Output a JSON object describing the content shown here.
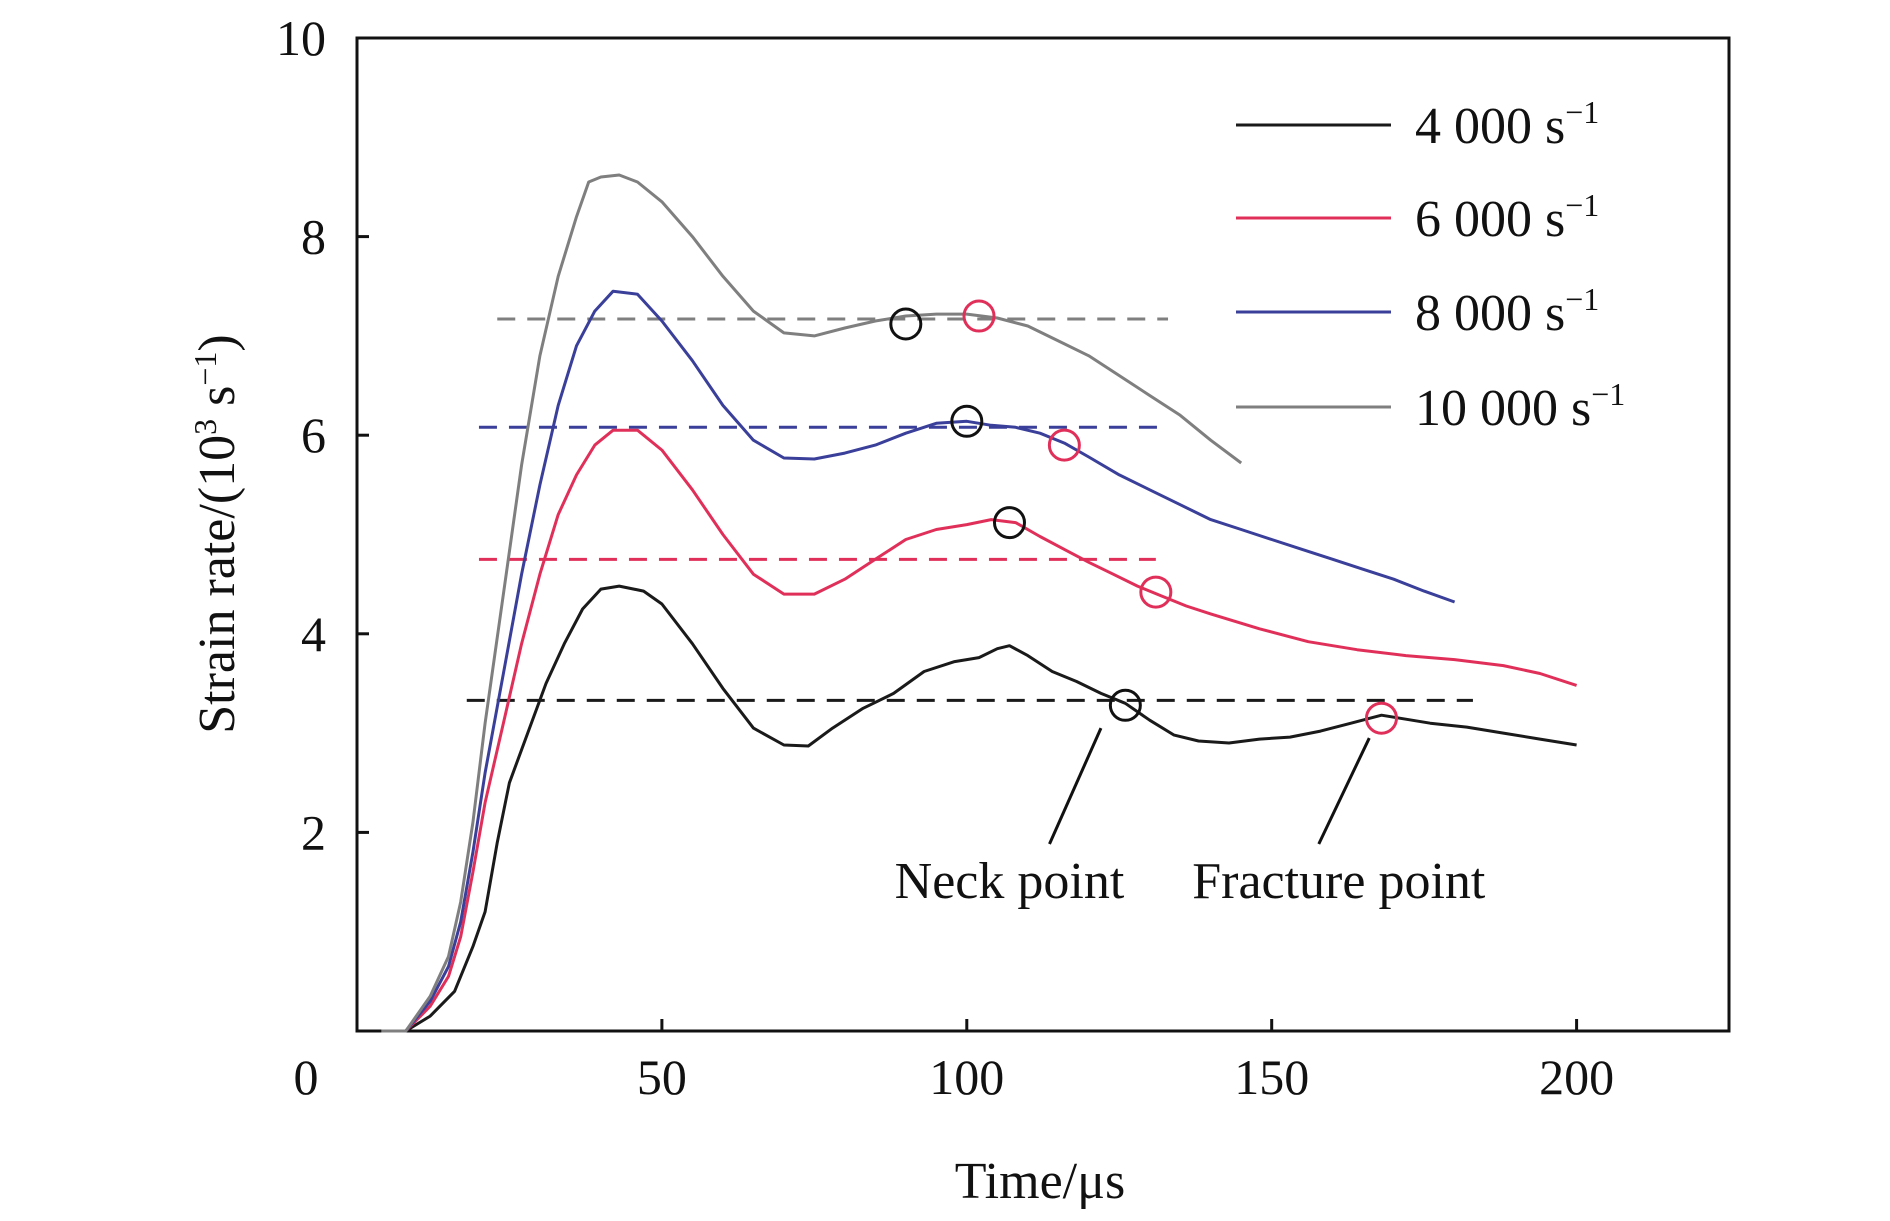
{
  "chart_data": {
    "type": "line",
    "xlabel": "Time/μs",
    "ylabel_base": "Strain rate/(10",
    "ylabel_sup1": "3",
    "ylabel_mid": " s",
    "ylabel_sup2": "−1",
    "ylabel_end": ")",
    "xlim": [
      0,
      225
    ],
    "ylim": [
      0,
      10
    ],
    "x_ticks": [
      {
        "value": 0,
        "label": "0"
      },
      {
        "value": 50,
        "label": "50"
      },
      {
        "value": 100,
        "label": "100"
      },
      {
        "value": 150,
        "label": "150"
      },
      {
        "value": 200,
        "label": "200"
      }
    ],
    "y_ticks": [
      {
        "value": 2,
        "label": "2"
      },
      {
        "value": 4,
        "label": "4"
      },
      {
        "value": 6,
        "label": "6"
      },
      {
        "value": 8,
        "label": "8"
      },
      {
        "value": 10,
        "label": "10"
      }
    ],
    "legend_position": "top-right",
    "series": [
      {
        "name": "4 000 s",
        "name_sup": "−1",
        "color": "#1a1a1a",
        "points": [
          [
            4,
            0
          ],
          [
            8,
            0
          ],
          [
            12,
            0.15
          ],
          [
            16,
            0.4
          ],
          [
            19,
            0.85
          ],
          [
            21,
            1.2
          ],
          [
            23,
            1.9
          ],
          [
            25,
            2.5
          ],
          [
            28,
            3.0
          ],
          [
            31,
            3.5
          ],
          [
            34,
            3.9
          ],
          [
            37,
            4.25
          ],
          [
            40,
            4.45
          ],
          [
            43,
            4.48
          ],
          [
            47,
            4.43
          ],
          [
            50,
            4.3
          ],
          [
            55,
            3.9
          ],
          [
            60,
            3.45
          ],
          [
            65,
            3.05
          ],
          [
            70,
            2.88
          ],
          [
            74,
            2.87
          ],
          [
            78,
            3.05
          ],
          [
            83,
            3.25
          ],
          [
            88,
            3.4
          ],
          [
            93,
            3.62
          ],
          [
            98,
            3.72
          ],
          [
            102,
            3.76
          ],
          [
            105,
            3.85
          ],
          [
            107,
            3.88
          ],
          [
            110,
            3.78
          ],
          [
            114,
            3.62
          ],
          [
            118,
            3.52
          ],
          [
            122,
            3.4
          ],
          [
            126,
            3.3
          ],
          [
            130,
            3.13
          ],
          [
            134,
            2.98
          ],
          [
            138,
            2.92
          ],
          [
            143,
            2.9
          ],
          [
            148,
            2.94
          ],
          [
            153,
            2.96
          ],
          [
            158,
            3.02
          ],
          [
            163,
            3.1
          ],
          [
            168,
            3.18
          ],
          [
            172,
            3.14
          ],
          [
            176,
            3.1
          ],
          [
            182,
            3.06
          ],
          [
            188,
            3.0
          ],
          [
            194,
            2.94
          ],
          [
            200,
            2.88
          ]
        ]
      },
      {
        "name": "6 000 s",
        "name_sup": "−1",
        "color": "#e0305a",
        "points": [
          [
            4,
            0
          ],
          [
            8,
            0
          ],
          [
            12,
            0.25
          ],
          [
            15,
            0.55
          ],
          [
            17,
            0.95
          ],
          [
            19,
            1.6
          ],
          [
            21,
            2.3
          ],
          [
            24,
            3.1
          ],
          [
            27,
            3.9
          ],
          [
            30,
            4.6
          ],
          [
            33,
            5.2
          ],
          [
            36,
            5.6
          ],
          [
            39,
            5.9
          ],
          [
            42,
            6.05
          ],
          [
            46,
            6.05
          ],
          [
            50,
            5.85
          ],
          [
            55,
            5.45
          ],
          [
            60,
            5.0
          ],
          [
            65,
            4.6
          ],
          [
            70,
            4.4
          ],
          [
            75,
            4.4
          ],
          [
            80,
            4.55
          ],
          [
            85,
            4.75
          ],
          [
            90,
            4.95
          ],
          [
            95,
            5.05
          ],
          [
            100,
            5.1
          ],
          [
            104,
            5.15
          ],
          [
            108,
            5.12
          ],
          [
            112,
            4.98
          ],
          [
            116,
            4.85
          ],
          [
            120,
            4.72
          ],
          [
            124,
            4.6
          ],
          [
            128,
            4.48
          ],
          [
            132,
            4.38
          ],
          [
            136,
            4.28
          ],
          [
            140,
            4.2
          ],
          [
            148,
            4.05
          ],
          [
            156,
            3.92
          ],
          [
            164,
            3.84
          ],
          [
            172,
            3.78
          ],
          [
            180,
            3.74
          ],
          [
            188,
            3.68
          ],
          [
            194,
            3.6
          ],
          [
            200,
            3.48
          ]
        ]
      },
      {
        "name": "8 000 s",
        "name_sup": "−1",
        "color": "#3a3f9a",
        "points": [
          [
            4,
            0
          ],
          [
            8,
            0
          ],
          [
            12,
            0.3
          ],
          [
            15,
            0.65
          ],
          [
            17,
            1.1
          ],
          [
            19,
            1.8
          ],
          [
            21,
            2.6
          ],
          [
            24,
            3.6
          ],
          [
            27,
            4.6
          ],
          [
            30,
            5.5
          ],
          [
            33,
            6.3
          ],
          [
            36,
            6.9
          ],
          [
            39,
            7.25
          ],
          [
            42,
            7.45
          ],
          [
            46,
            7.42
          ],
          [
            50,
            7.15
          ],
          [
            55,
            6.75
          ],
          [
            60,
            6.3
          ],
          [
            65,
            5.95
          ],
          [
            70,
            5.77
          ],
          [
            75,
            5.76
          ],
          [
            80,
            5.82
          ],
          [
            85,
            5.9
          ],
          [
            90,
            6.02
          ],
          [
            95,
            6.12
          ],
          [
            100,
            6.14
          ],
          [
            104,
            6.1
          ],
          [
            108,
            6.08
          ],
          [
            112,
            6.02
          ],
          [
            116,
            5.92
          ],
          [
            120,
            5.78
          ],
          [
            125,
            5.6
          ],
          [
            130,
            5.45
          ],
          [
            135,
            5.3
          ],
          [
            140,
            5.15
          ],
          [
            145,
            5.05
          ],
          [
            150,
            4.95
          ],
          [
            155,
            4.85
          ],
          [
            160,
            4.75
          ],
          [
            165,
            4.65
          ],
          [
            170,
            4.55
          ],
          [
            175,
            4.43
          ],
          [
            180,
            4.32
          ]
        ]
      },
      {
        "name": "10 000 s",
        "name_sup": "−1",
        "color": "#7f7f7f",
        "points": [
          [
            4,
            0
          ],
          [
            8,
            0
          ],
          [
            12,
            0.35
          ],
          [
            15,
            0.75
          ],
          [
            17,
            1.3
          ],
          [
            19,
            2.1
          ],
          [
            21,
            3.1
          ],
          [
            24,
            4.4
          ],
          [
            27,
            5.7
          ],
          [
            30,
            6.8
          ],
          [
            33,
            7.6
          ],
          [
            36,
            8.2
          ],
          [
            38,
            8.55
          ],
          [
            40,
            8.6
          ],
          [
            43,
            8.62
          ],
          [
            46,
            8.55
          ],
          [
            50,
            8.35
          ],
          [
            55,
            8.0
          ],
          [
            60,
            7.6
          ],
          [
            65,
            7.25
          ],
          [
            70,
            7.03
          ],
          [
            75,
            7.0
          ],
          [
            80,
            7.08
          ],
          [
            85,
            7.15
          ],
          [
            90,
            7.2
          ],
          [
            95,
            7.22
          ],
          [
            100,
            7.22
          ],
          [
            105,
            7.18
          ],
          [
            110,
            7.1
          ],
          [
            115,
            6.95
          ],
          [
            120,
            6.8
          ],
          [
            125,
            6.6
          ],
          [
            130,
            6.4
          ],
          [
            135,
            6.2
          ],
          [
            140,
            5.95
          ],
          [
            145,
            5.72
          ]
        ]
      }
    ],
    "dashed_lines": [
      {
        "y": 3.33,
        "x_start": 18,
        "x_end": 183,
        "color": "#1a1a1a"
      },
      {
        "y": 4.75,
        "x_start": 20,
        "x_end": 131,
        "color": "#e0305a"
      },
      {
        "y": 6.08,
        "x_start": 20,
        "x_end": 132,
        "color": "#3a3f9a"
      },
      {
        "y": 7.17,
        "x_start": 23,
        "x_end": 133,
        "color": "#7f7f7f"
      }
    ],
    "neck_points": [
      {
        "x": 126,
        "y": 3.28
      },
      {
        "x": 107,
        "y": 5.12
      },
      {
        "x": 100,
        "y": 6.14
      },
      {
        "x": 90,
        "y": 7.12
      }
    ],
    "fracture_points": [
      {
        "x": 168,
        "y": 3.15
      },
      {
        "x": 131,
        "y": 4.42
      },
      {
        "x": 116,
        "y": 5.9
      },
      {
        "x": 102,
        "y": 7.2
      }
    ],
    "marker_colors": {
      "neck": "#111111",
      "fracture": "#e0305a"
    },
    "annotations": [
      {
        "text": "Neck point",
        "target_x": 122,
        "target_y": 3.05,
        "label_x": 107,
        "label_y": 1.4
      },
      {
        "text": "Fracture point",
        "target_x": 166,
        "target_y": 2.95,
        "label_x": 161,
        "label_y": 1.4
      }
    ]
  }
}
